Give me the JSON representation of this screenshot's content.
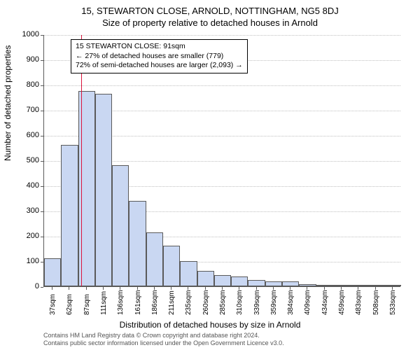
{
  "title": "15, STEWARTON CLOSE, ARNOLD, NOTTINGHAM, NG5 8DJ",
  "subtitle": "Size of property relative to detached houses in Arnold",
  "ylabel": "Number of detached properties",
  "xlabel": "Distribution of detached houses by size in Arnold",
  "chart": {
    "type": "histogram",
    "ylim": [
      0,
      1000
    ],
    "ytick_step": 100,
    "bar_fill": "#c9d7f2",
    "bar_border": "#5a5a5a",
    "grid_color": "#bfbfbf",
    "axis_color": "#5a5a5a",
    "background": "#ffffff",
    "categories": [
      "37sqm",
      "62sqm",
      "87sqm",
      "111sqm",
      "136sqm",
      "161sqm",
      "186sqm",
      "211sqm",
      "235sqm",
      "260sqm",
      "285sqm",
      "310sqm",
      "339sqm",
      "359sqm",
      "384sqm",
      "409sqm",
      "434sqm",
      "459sqm",
      "483sqm",
      "508sqm",
      "533sqm"
    ],
    "values": [
      110,
      560,
      775,
      765,
      480,
      340,
      215,
      160,
      100,
      60,
      45,
      38,
      25,
      20,
      20,
      8,
      2,
      2,
      2,
      2,
      2
    ],
    "bar_width_ratio": 1.0
  },
  "marker": {
    "category_index": 2,
    "offset_within_bar": 0.2,
    "color": "#dc143c"
  },
  "callout": {
    "line1": "15 STEWARTON CLOSE: 91sqm",
    "line2": "← 27% of detached houses are smaller (779)",
    "line3": "72% of semi-detached houses are larger (2,093) →",
    "border": "#000000",
    "background": "#ffffff",
    "fontsize": 10.5
  },
  "footer": {
    "line1": "Contains HM Land Registry data © Crown copyright and database right 2024.",
    "line2": "Contains public sector information licensed under the Open Government Licence v3.0."
  }
}
